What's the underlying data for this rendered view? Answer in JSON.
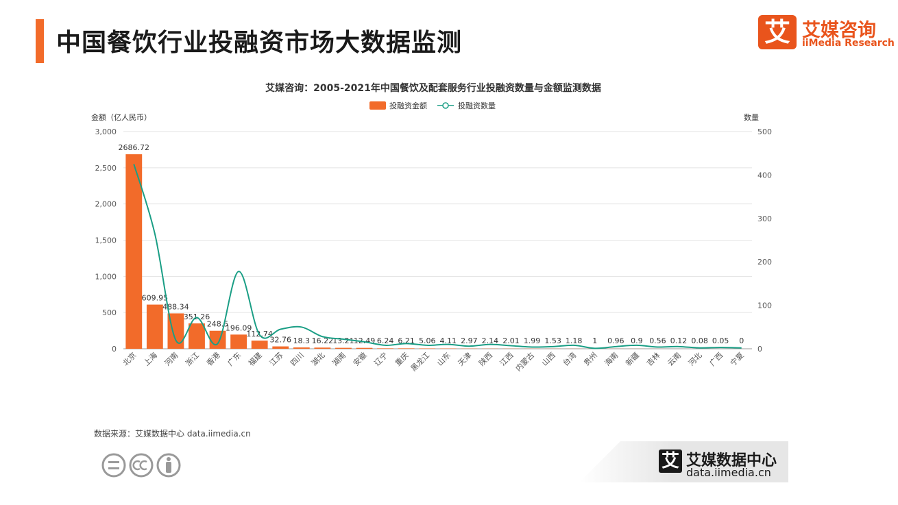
{
  "page": {
    "title": "中国餐饮行业投融资市场大数据监测",
    "logo_icon": "艾",
    "logo_cn": "艾媒咨询",
    "logo_en": "iiMedia Research",
    "source": "数据来源：艾媒数据中心 data.iimedia.cn",
    "footer_icon": "艾",
    "footer_cn": "艾媒数据中心",
    "footer_en": "data.iimedia.cn",
    "accent_color": "#F26B2A",
    "line_color": "#1A9E85"
  },
  "chart_data": {
    "type": "bar",
    "title": "艾媒咨询：2005-2021年中国餐饮及配套服务行业投融资数量与金额监测数据",
    "ylabel": "金额（亿人民币）",
    "y2label": "数量",
    "ylim": [
      0,
      3000
    ],
    "y2lim": [
      0,
      500
    ],
    "yticks": [
      "0",
      "500",
      "1,000",
      "1,500",
      "2,000",
      "2,500",
      "3,000"
    ],
    "y2ticks": [
      "0",
      "100",
      "200",
      "300",
      "400",
      "500"
    ],
    "legend": [
      "投融资金额",
      "投融资数量"
    ],
    "categories": [
      "北京",
      "上海",
      "河南",
      "浙江",
      "香港",
      "广东",
      "福建",
      "江苏",
      "四川",
      "湖北",
      "湖南",
      "安徽",
      "辽宁",
      "重庆",
      "黑龙江",
      "山东",
      "天津",
      "陕西",
      "江西",
      "内蒙古",
      "山西",
      "台湾",
      "贵州",
      "海南",
      "新疆",
      "吉林",
      "云南",
      "河北",
      "广西",
      "宁夏"
    ],
    "series": [
      {
        "name": "投融资金额",
        "type": "bar",
        "axis": "left",
        "values": [
          2686.72,
          609.95,
          488.34,
          351.26,
          248.5,
          196.09,
          112.74,
          32.76,
          18.3,
          16.22,
          13.21,
          12.49,
          6.24,
          6.21,
          5.06,
          4.11,
          2.97,
          2.14,
          2.01,
          1.99,
          1.53,
          1.18,
          1,
          0.96,
          0.9,
          0.56,
          0.12,
          0.08,
          0.05,
          0
        ],
        "labels": [
          "2686.72",
          "609.95",
          "488.34",
          "351.26",
          "248.5",
          "196.09",
          "112.74",
          "32.76",
          "18.3",
          "16.22",
          "13.21",
          "12.49",
          "6.24",
          "6.21",
          "5.06",
          "4.11",
          "2.97",
          "2.14",
          "2.01",
          "1.99",
          "1.53",
          "1.18",
          "1",
          "0.96",
          "0.9",
          "0.56",
          "0.12",
          "0.08",
          "0.05",
          "0"
        ]
      },
      {
        "name": "投融资数量",
        "type": "line",
        "axis": "right",
        "values": [
          425,
          265,
          20,
          72,
          12,
          178,
          32,
          45,
          50,
          28,
          22,
          16,
          8,
          12,
          8,
          10,
          6,
          10,
          7,
          4,
          5,
          8,
          1,
          5,
          8,
          4,
          5,
          2,
          3,
          2
        ]
      }
    ]
  }
}
